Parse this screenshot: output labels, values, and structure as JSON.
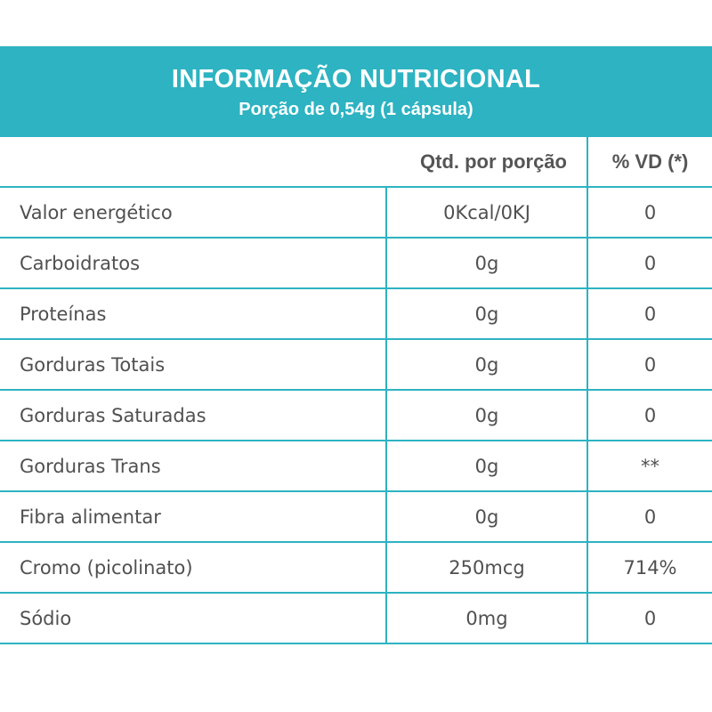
{
  "header": {
    "title": "INFORMAÇÃO NUTRICIONAL",
    "subtitle": "Porção de 0,54g (1 cápsula)"
  },
  "colors": {
    "accent": "#2db3c2",
    "text": "#505050"
  },
  "table": {
    "columns": [
      "",
      "Qtd. por porção",
      "% VD (*)"
    ],
    "rows": [
      {
        "name": "Valor energético",
        "qty": "0Kcal/0KJ",
        "vd": "0"
      },
      {
        "name": "Carboidratos",
        "qty": "0g",
        "vd": "0"
      },
      {
        "name": "Proteínas",
        "qty": "0g",
        "vd": "0"
      },
      {
        "name": "Gorduras Totais",
        "qty": "0g",
        "vd": "0"
      },
      {
        "name": "Gorduras Saturadas",
        "qty": "0g",
        "vd": "0"
      },
      {
        "name": "Gorduras Trans",
        "qty": "0g",
        "vd": "**"
      },
      {
        "name": "Fibra alimentar",
        "qty": "0g",
        "vd": "0"
      },
      {
        "name": "Cromo (picolinato)",
        "qty": "250mcg",
        "vd": "714%"
      },
      {
        "name": "Sódio",
        "qty": "0mg",
        "vd": "0"
      }
    ]
  }
}
